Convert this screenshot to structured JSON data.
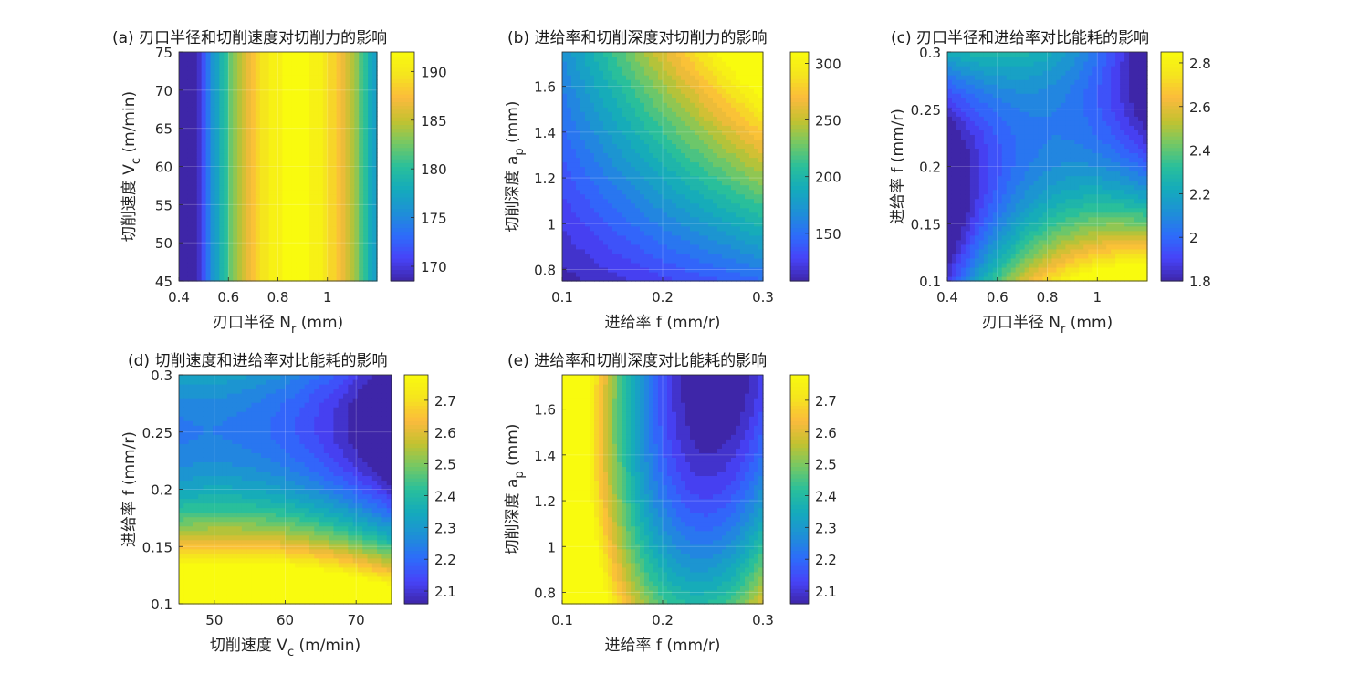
{
  "colormap": [
    "#3e26a8",
    "#4743f8",
    "#2d6cfa",
    "#1e90d6",
    "#14aabc",
    "#29bf9b",
    "#73c865",
    "#c3c230",
    "#fbba3d",
    "#f5e41e",
    "#f9fb0e"
  ],
  "chart_data": [
    {
      "type": "heatmap",
      "id": "a",
      "title": "(a) 刃口半径和切削速度对切削力的影响",
      "xlabel": {
        "text": "刃口半径 N",
        "sub": "r",
        "suffix": " (mm)"
      },
      "ylabel": {
        "text": "切削速度 V",
        "sub": "c",
        "suffix": " (m/min)"
      },
      "xlim": [
        0.4,
        1.2
      ],
      "ylim": [
        45,
        75
      ],
      "xticks": [
        0.4,
        0.6,
        0.8,
        1.0
      ],
      "xtick_labels": [
        "0.4",
        "0.6",
        "0.8",
        "1"
      ],
      "yticks": [
        45,
        50,
        55,
        60,
        65,
        70,
        75
      ],
      "ytick_labels": [
        "45",
        "50",
        "55",
        "60",
        "65",
        "70",
        "75"
      ],
      "clim": [
        168.5,
        192
      ],
      "cticks": [
        170,
        175,
        180,
        185,
        190
      ],
      "ctick_labels": [
        "170",
        "175",
        "180",
        "185",
        "190"
      ],
      "surface": {
        "model": "quadratic",
        "c": [
          192,
          0,
          0,
          -146.9,
          0,
          0
        ],
        "x0": 0.87,
        "y0": 60
      }
    },
    {
      "type": "heatmap",
      "id": "b",
      "title": "(b) 进给率和切削深度对切削力的影响",
      "xlabel": {
        "text": "进给率 f",
        "sub": "",
        "suffix": " (mm/r)"
      },
      "ylabel": {
        "text": "切削深度 a",
        "sub": "p",
        "suffix": " (mm)"
      },
      "xlim": [
        0.1,
        0.3
      ],
      "ylim": [
        0.75,
        1.75
      ],
      "xticks": [
        0.1,
        0.2,
        0.3
      ],
      "xtick_labels": [
        "0.1",
        "0.2",
        "0.3"
      ],
      "yticks": [
        0.8,
        1.0,
        1.2,
        1.4,
        1.6
      ],
      "ytick_labels": [
        "0.8",
        "1",
        "1.2",
        "1.4",
        "1.6"
      ],
      "clim": [
        108,
        310
      ],
      "cticks": [
        150,
        200,
        250,
        300
      ],
      "ctick_labels": [
        "150",
        "200",
        "250",
        "300"
      ],
      "surface": {
        "model": "quadratic",
        "c": [
          108,
          200,
          60,
          0,
          0,
          700
        ],
        "x0": 0.1,
        "y0": 0.75
      }
    },
    {
      "type": "heatmap",
      "id": "c",
      "title": "(c) 刃口半径和进给率对比能耗的影响",
      "xlabel": {
        "text": "刃口半径 N",
        "sub": "r",
        "suffix": " (mm)"
      },
      "ylabel": {
        "text": "进给率 f",
        "sub": "",
        "suffix": " (mm/r)"
      },
      "xlim": [
        0.4,
        1.2
      ],
      "ylim": [
        0.1,
        0.3
      ],
      "xticks": [
        0.4,
        0.6,
        0.8,
        1.0
      ],
      "xtick_labels": [
        "0.4",
        "0.6",
        "0.8",
        "1"
      ],
      "yticks": [
        0.1,
        0.15,
        0.2,
        0.25,
        0.3
      ],
      "ytick_labels": [
        "0.1",
        "0.15",
        "0.2",
        "0.25",
        "0.3"
      ],
      "clim": [
        1.8,
        2.85
      ],
      "cticks": [
        1.8,
        2.0,
        2.2,
        2.4,
        2.6,
        2.8
      ],
      "ctick_labels": [
        "1.8",
        "2",
        "2.2",
        "2.4",
        "2.6",
        "2.8"
      ],
      "surface": {
        "model": "quadratic",
        "c": [
          2.1,
          0.4,
          -2.5,
          -1.7,
          38,
          -10.5
        ],
        "x0": 0.8,
        "y0": 0.2
      }
    },
    {
      "type": "heatmap",
      "id": "d",
      "title": "(d) 切削速度和进给率对比能耗的影响",
      "xlabel": {
        "text": "切削速度 V",
        "sub": "c",
        "suffix": " (m/min)"
      },
      "ylabel": {
        "text": "进给率 f",
        "sub": "",
        "suffix": " (mm/r)"
      },
      "xlim": [
        45,
        75
      ],
      "ylim": [
        0.1,
        0.3
      ],
      "xticks": [
        50,
        60,
        70
      ],
      "xtick_labels": [
        "50",
        "60",
        "70"
      ],
      "yticks": [
        0.1,
        0.15,
        0.2,
        0.25,
        0.3
      ],
      "ytick_labels": [
        "0.1",
        "0.15",
        "0.2",
        "0.25",
        "0.3"
      ],
      "clim": [
        2.06,
        2.78
      ],
      "cticks": [
        2.1,
        2.2,
        2.3,
        2.4,
        2.5,
        2.6,
        2.7
      ],
      "ctick_labels": [
        "2.1",
        "2.2",
        "2.3",
        "2.4",
        "2.5",
        "2.6",
        "2.7"
      ],
      "surface": {
        "model": "quadratic",
        "c": [
          2.31,
          -0.0081,
          -4.4,
          -0.00043,
          40,
          -0.024
        ],
        "x0": 60,
        "y0": 0.2
      }
    },
    {
      "type": "heatmap",
      "id": "e",
      "title": "(e) 进给率和切削深度对比能耗的影响",
      "xlabel": {
        "text": "进给率 f",
        "sub": "",
        "suffix": " (mm/r)"
      },
      "ylabel": {
        "text": "切削深度 a",
        "sub": "p",
        "suffix": " (mm)"
      },
      "xlim": [
        0.1,
        0.3
      ],
      "ylim": [
        0.75,
        1.75
      ],
      "xticks": [
        0.1,
        0.2,
        0.3
      ],
      "xtick_labels": [
        "0.1",
        "0.2",
        "0.3"
      ],
      "yticks": [
        0.8,
        1.0,
        1.2,
        1.4,
        1.6
      ],
      "ytick_labels": [
        "0.8",
        "1",
        "1.2",
        "1.4",
        "1.6"
      ],
      "clim": [
        2.06,
        2.78
      ],
      "cticks": [
        2.1,
        2.2,
        2.3,
        2.4,
        2.5,
        2.6,
        2.7
      ],
      "ctick_labels": [
        "2.1",
        "2.2",
        "2.3",
        "2.4",
        "2.5",
        "2.6",
        "2.7"
      ],
      "surface": {
        "model": "quadratic",
        "c": [
          2.22,
          -4.2,
          -0.3,
          48,
          0.35,
          -1.9
        ],
        "x0": 0.2,
        "y0": 1.25
      }
    }
  ]
}
